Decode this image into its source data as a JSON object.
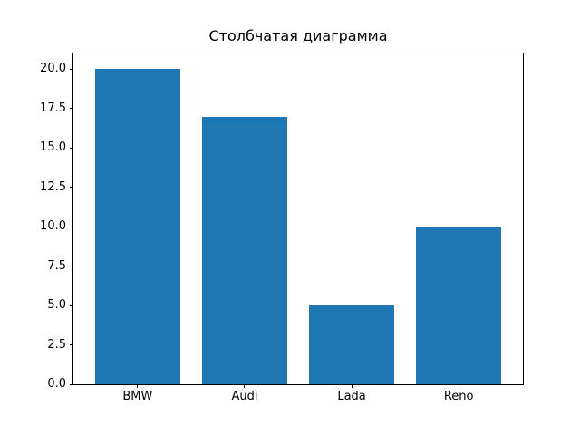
{
  "chart_data": {
    "type": "bar",
    "title": "Столбчатая диаграмма",
    "categories": [
      "BMW",
      "Audi",
      "Lada",
      "Reno"
    ],
    "values": [
      20,
      17,
      5,
      10
    ],
    "yticks": [
      "0.0",
      "2.5",
      "5.0",
      "7.5",
      "10.0",
      "12.5",
      "15.0",
      "17.5",
      "20.0"
    ],
    "ylim": [
      0,
      21
    ],
    "xlabel": "",
    "ylabel": "",
    "bar_color": "#1f77b4",
    "grid": false,
    "legend_position": "none"
  }
}
